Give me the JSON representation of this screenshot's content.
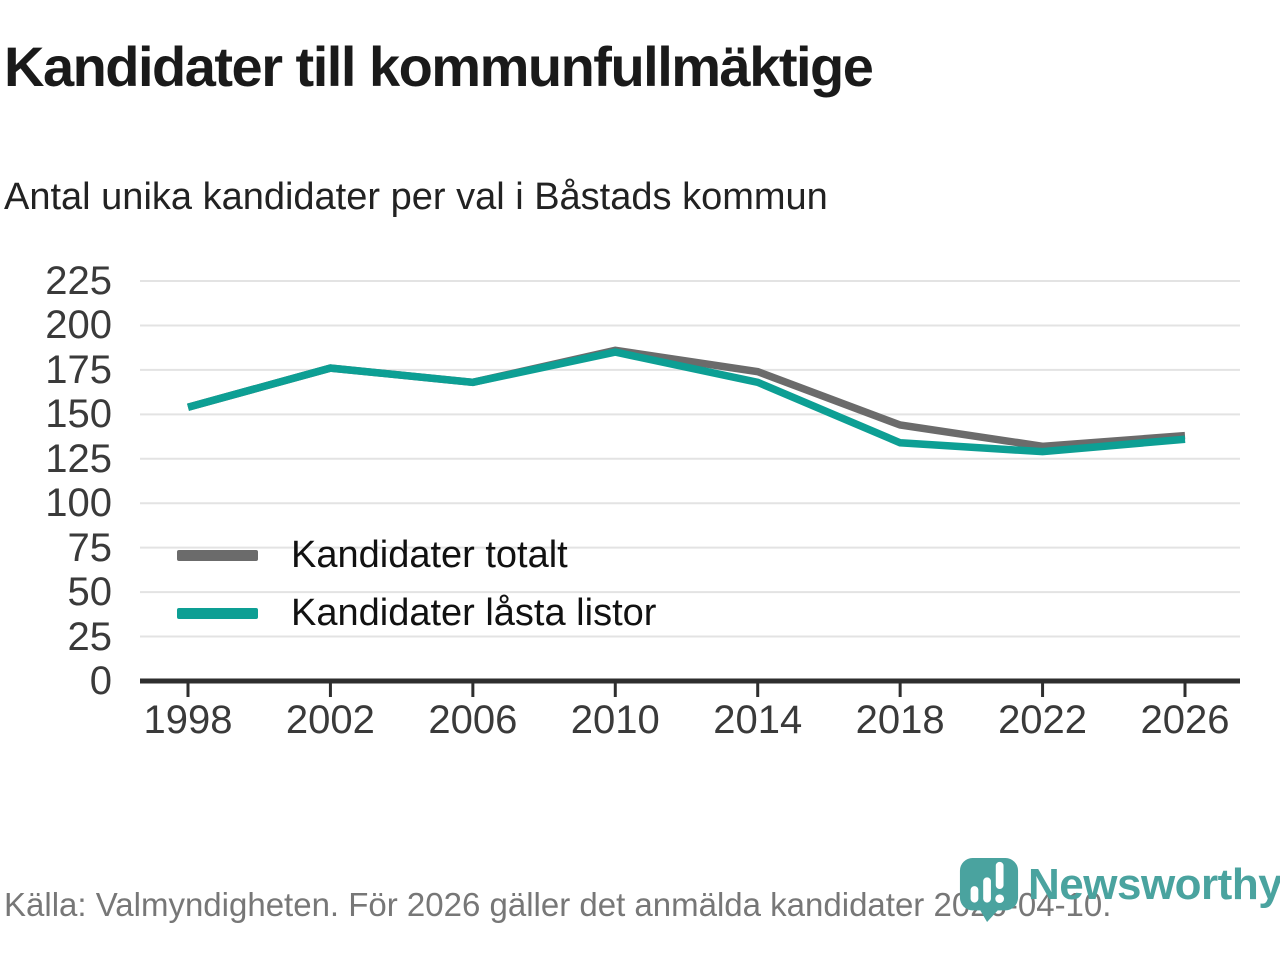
{
  "header": {
    "title": "Kandidater till kommunfullmäktige",
    "subtitle": "Antal unika kandidater per val i Båstads kommun"
  },
  "chart_data": {
    "type": "line",
    "title": "Kandidater till kommunfullmäktige",
    "subtitle": "Antal unika kandidater per val i Båstads kommun",
    "x": [
      1998,
      2002,
      2006,
      2010,
      2014,
      2018,
      2022,
      2026
    ],
    "series": [
      {
        "name": "Kandidater totalt",
        "color": "#6b6b6b",
        "values": [
          154,
          176,
          168,
          186,
          174,
          144,
          132,
          138
        ]
      },
      {
        "name": "Kandidater låsta listor",
        "color": "#0d9f94",
        "values": [
          154,
          176,
          168,
          185,
          168,
          134,
          129,
          136
        ]
      }
    ],
    "ylim": [
      0,
      225
    ],
    "ytick_step": 25,
    "xlabel": "",
    "ylabel": "",
    "grid": "horizontal",
    "legend_position": "inside-bottom-left"
  },
  "footer": {
    "source": "Källa: Valmyndigheten. För 2026 gäller det anmälda kandidater 2026-04-10."
  },
  "branding": {
    "name": "Newsworthy",
    "logo_icon": "newsworthy-pin-barchart-icon",
    "color": "#4aa39f"
  },
  "colors": {
    "grid": "#e3e3e3",
    "axis": "#2e2e2e",
    "tick_label": "#3a3a3a",
    "footer_text": "#777777"
  }
}
